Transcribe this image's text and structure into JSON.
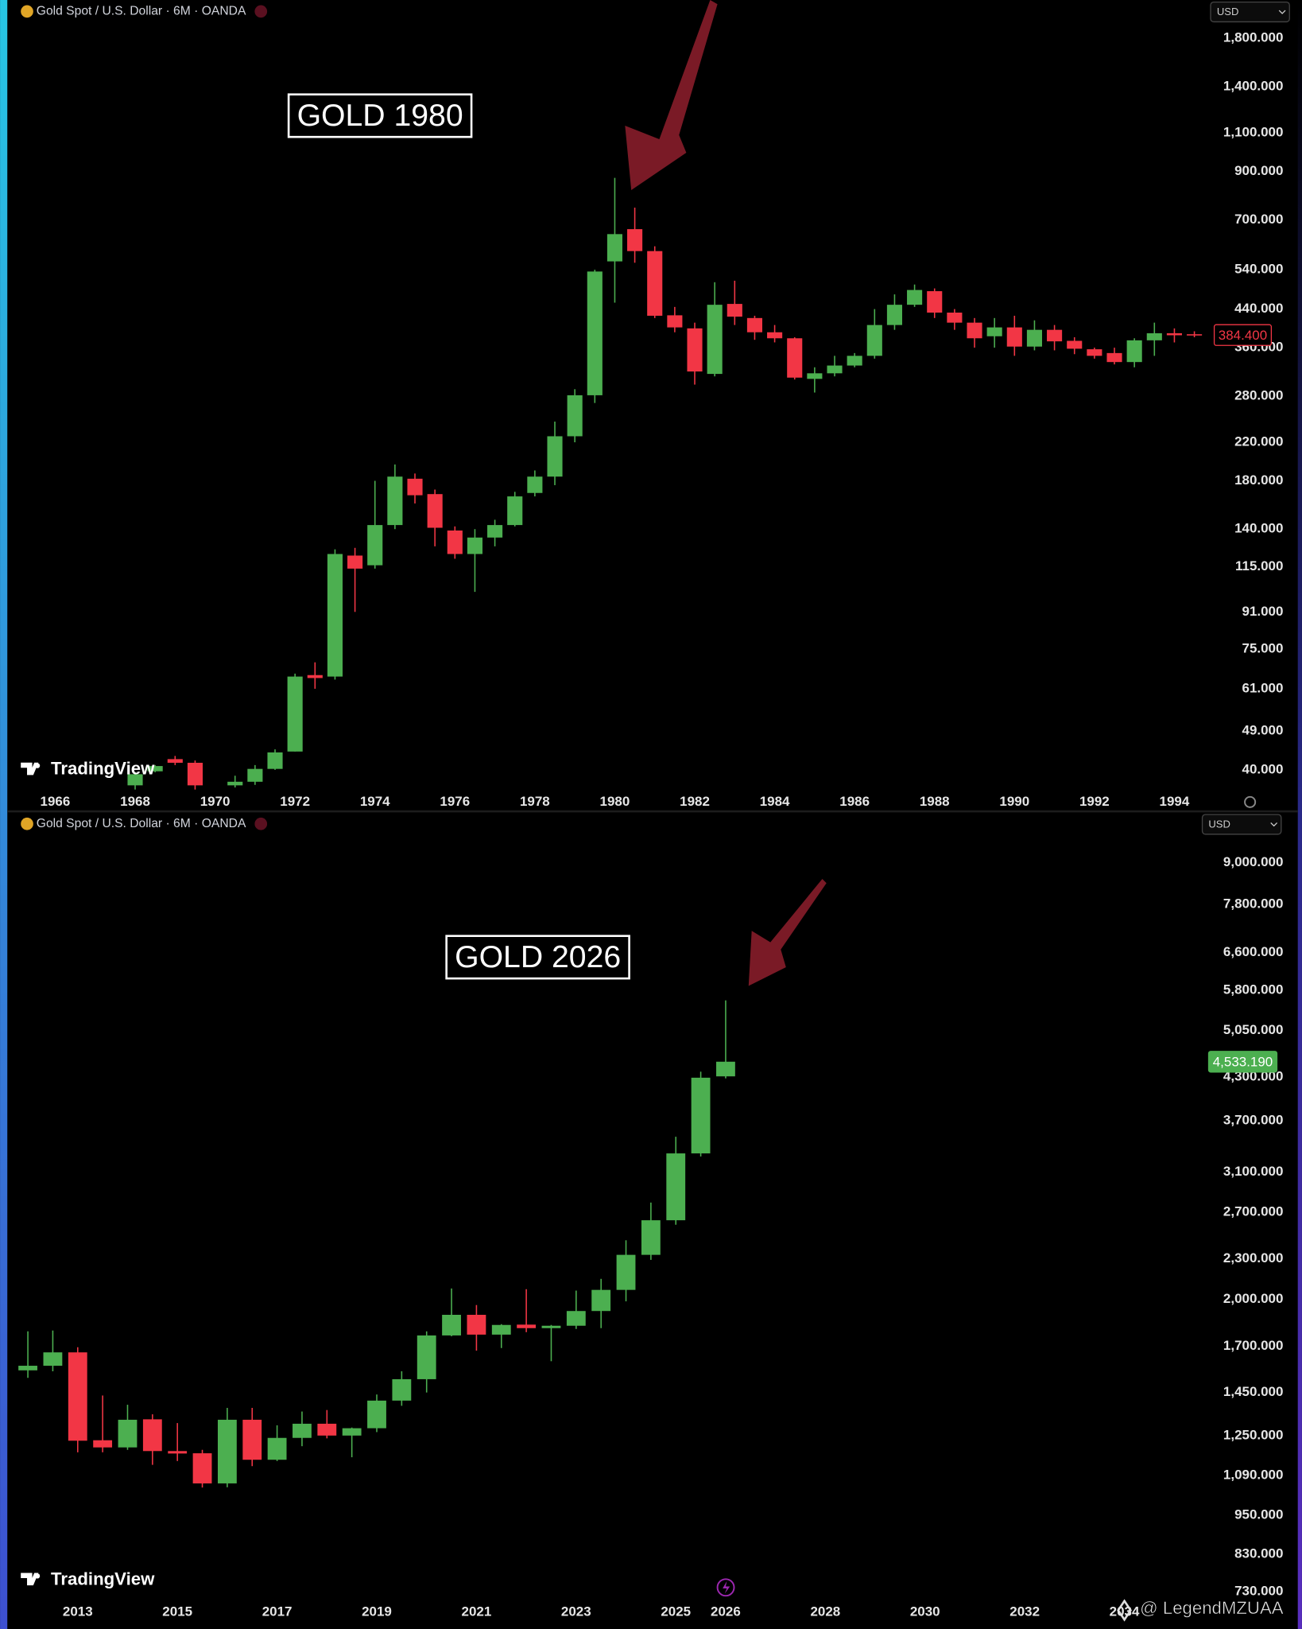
{
  "chart_data": [
    {
      "type": "candlestick",
      "title": "Gold Spot / U.S. Dollar · 6M · OANDA",
      "currency": "USD",
      "annotation": "GOLD 1980",
      "logo": "TradingView",
      "log_scale": true,
      "grid": false,
      "up_color": "#4caf50",
      "down_color": "#f23645",
      "x": [
        1968.0,
        1968.5,
        1969.0,
        1969.5,
        1970.5,
        1971.0,
        1971.5,
        1972.0,
        1972.5,
        1973.0,
        1973.5,
        1974.0,
        1974.5,
        1975.0,
        1975.5,
        1976.0,
        1976.5,
        1977.0,
        1977.5,
        1978.0,
        1978.5,
        1979.0,
        1979.5,
        1980.0,
        1980.5,
        1981.0,
        1981.5,
        1982.0,
        1982.5,
        1983.0,
        1983.5,
        1984.0,
        1984.5,
        1985.0,
        1985.5,
        1986.0,
        1986.5,
        1987.0,
        1987.5,
        1988.0,
        1988.5,
        1989.0,
        1989.5,
        1990.0,
        1990.5,
        1991.0,
        1991.5,
        1992.0,
        1992.5,
        1993.0,
        1993.5,
        1994.0,
        1994.5
      ],
      "open": [
        36.9,
        39.7,
        42.3,
        41.5,
        36.9,
        37.6,
        40.2,
        44,
        65.5,
        65,
        122,
        116,
        143,
        182,
        168,
        139,
        123,
        134,
        143,
        169,
        184,
        227,
        281,
        564,
        667,
        595,
        426,
        398,
        314,
        452,
        420,
        390,
        378,
        306,
        315,
        328,
        345,
        405,
        450,
        483,
        432,
        410,
        382,
        400,
        362,
        395,
        373,
        357,
        350,
        334,
        374,
        388,
        386
      ],
      "high": [
        39.5,
        41,
        43,
        42,
        38.8,
        41,
        44.5,
        66,
        70,
        126,
        127,
        180,
        196,
        187,
        172,
        142,
        140,
        147,
        170,
        190,
        245,
        290,
        540,
        871,
        746,
        610,
        445,
        410,
        506,
        510,
        425,
        405,
        380,
        325,
        345,
        350,
        440,
        475,
        500,
        490,
        440,
        420,
        420,
        425,
        415,
        405,
        380,
        360,
        360,
        378,
        410,
        398,
        392
      ],
      "low": [
        36,
        39.5,
        41,
        36,
        36.5,
        37,
        40,
        44,
        61,
        64,
        91,
        114,
        140,
        160,
        128,
        120,
        101,
        128,
        142,
        166,
        176,
        220,
        270,
        455,
        560,
        420,
        390,
        297,
        310,
        405,
        375,
        370,
        305,
        285,
        310,
        325,
        340,
        395,
        445,
        420,
        395,
        360,
        360,
        345,
        355,
        355,
        348,
        340,
        330,
        325,
        345,
        370,
        380
      ],
      "close": [
        39.1,
        40.8,
        41.5,
        36.9,
        37.6,
        40.2,
        43.8,
        65,
        64.5,
        123,
        114,
        143,
        184,
        167,
        141,
        123,
        134,
        143,
        166,
        184,
        227,
        281,
        535,
        650,
        595,
        425,
        400,
        318,
        450,
        423,
        390,
        378,
        308,
        315,
        328,
        345,
        405,
        450,
        486,
        432,
        410,
        378,
        400,
        362,
        395,
        372,
        358,
        345,
        334,
        374,
        388,
        384,
        384.4
      ],
      "price_label": "384.400",
      "xlim": [
        1964.88,
        1994.75
      ],
      "xticks": [
        1966,
        1968,
        1970,
        1972,
        1974,
        1976,
        1978,
        1980,
        1982,
        1984,
        1986,
        1988,
        1990,
        1992,
        1994
      ],
      "ylim": [
        36.1,
        2198
      ],
      "yticks": [
        {
          "value": 40,
          "label": "40.000"
        },
        {
          "value": 49,
          "label": "49.000"
        },
        {
          "value": 61,
          "label": "61.000"
        },
        {
          "value": 75,
          "label": "75.000"
        },
        {
          "value": 91,
          "label": "91.000"
        },
        {
          "value": 115,
          "label": "115.000"
        },
        {
          "value": 140,
          "label": "140.000"
        },
        {
          "value": 180,
          "label": "180.000"
        },
        {
          "value": 220,
          "label": "220.000"
        },
        {
          "value": 280,
          "label": "280.000"
        },
        {
          "value": 360,
          "label": "360.000"
        },
        {
          "value": 440,
          "label": "440.000"
        },
        {
          "value": 540,
          "label": "540.000"
        },
        {
          "value": 700,
          "label": "700.000"
        },
        {
          "value": 900,
          "label": "900.000"
        },
        {
          "value": 1100,
          "label": "1,100.000"
        },
        {
          "value": 1400,
          "label": "1,400.000"
        },
        {
          "value": 1800,
          "label": "1,800.000"
        }
      ]
    },
    {
      "type": "candlestick",
      "title": "Gold Spot / U.S. Dollar · 6M · OANDA",
      "currency": "USD",
      "annotation": "GOLD 2026",
      "logo": "TradingView",
      "log_scale": true,
      "grid": false,
      "up_color": "#4caf50",
      "down_color": "#f23645",
      "x": [
        2012.0,
        2012.5,
        2013.0,
        2013.5,
        2014.0,
        2014.5,
        2015.0,
        2015.5,
        2016.0,
        2016.5,
        2017.0,
        2017.5,
        2018.0,
        2018.5,
        2019.0,
        2019.5,
        2020.0,
        2020.5,
        2021.0,
        2021.5,
        2022.0,
        2022.5,
        2023.0,
        2023.5,
        2024.0,
        2024.5,
        2025.0,
        2025.5,
        2026.0
      ],
      "open": [
        1565,
        1590,
        1665,
        1230,
        1200,
        1322,
        1185,
        1176,
        1060,
        1320,
        1150,
        1240,
        1302,
        1250,
        1282,
        1410,
        1518,
        1765,
        1895,
        1770,
        1832,
        1810,
        1825,
        1920,
        2065,
        2330,
        2625,
        3305,
        4310
      ],
      "high": [
        1790,
        1795,
        1695,
        1435,
        1390,
        1345,
        1305,
        1190,
        1375,
        1375,
        1295,
        1358,
        1365,
        1285,
        1440,
        1560,
        1790,
        2075,
        1960,
        1835,
        2070,
        1830,
        2060,
        2145,
        2450,
        2790,
        3500,
        4380,
        5600
      ],
      "low": [
        1525,
        1560,
        1180,
        1180,
        1190,
        1130,
        1145,
        1045,
        1046,
        1125,
        1145,
        1205,
        1238,
        1160,
        1265,
        1385,
        1450,
        1760,
        1675,
        1690,
        1785,
        1615,
        1805,
        1810,
        1985,
        2290,
        2585,
        3270,
        4280
      ],
      "close": [
        1590,
        1665,
        1228,
        1200,
        1320,
        1185,
        1175,
        1060,
        1320,
        1150,
        1240,
        1302,
        1250,
        1282,
        1410,
        1518,
        1765,
        1895,
        1770,
        1830,
        1810,
        1825,
        1920,
        2065,
        2330,
        2625,
        3305,
        4290,
        4533.19
      ],
      "price_label": "4,533.190",
      "xlim": [
        2011.65,
        2035.5
      ],
      "xticks": [
        2013,
        2015,
        2017,
        2019,
        2021,
        2023,
        2025,
        2026,
        2028,
        2030,
        2032,
        2034
      ],
      "ylim": [
        709.5,
        10034
      ],
      "yticks": [
        {
          "value": 730,
          "label": "730.000"
        },
        {
          "value": 830,
          "label": "830.000"
        },
        {
          "value": 950,
          "label": "950.000"
        },
        {
          "value": 1090,
          "label": "1,090.000"
        },
        {
          "value": 1250,
          "label": "1,250.000"
        },
        {
          "value": 1450,
          "label": "1,450.000"
        },
        {
          "value": 1700,
          "label": "1,700.000"
        },
        {
          "value": 2000,
          "label": "2,000.000"
        },
        {
          "value": 2300,
          "label": "2,300.000"
        },
        {
          "value": 2700,
          "label": "2,700.000"
        },
        {
          "value": 3100,
          "label": "3,100.000"
        },
        {
          "value": 3700,
          "label": "3,700.000"
        },
        {
          "value": 4300,
          "label": "4,300.000"
        },
        {
          "value": 5050,
          "label": "5,050.000"
        },
        {
          "value": 5800,
          "label": "5,800.000"
        },
        {
          "value": 6600,
          "label": "6,600.000"
        },
        {
          "value": 7800,
          "label": "7,800.000"
        },
        {
          "value": 9000,
          "label": "9,000.000"
        }
      ]
    }
  ],
  "watermark": "@ LegendMZUAA"
}
